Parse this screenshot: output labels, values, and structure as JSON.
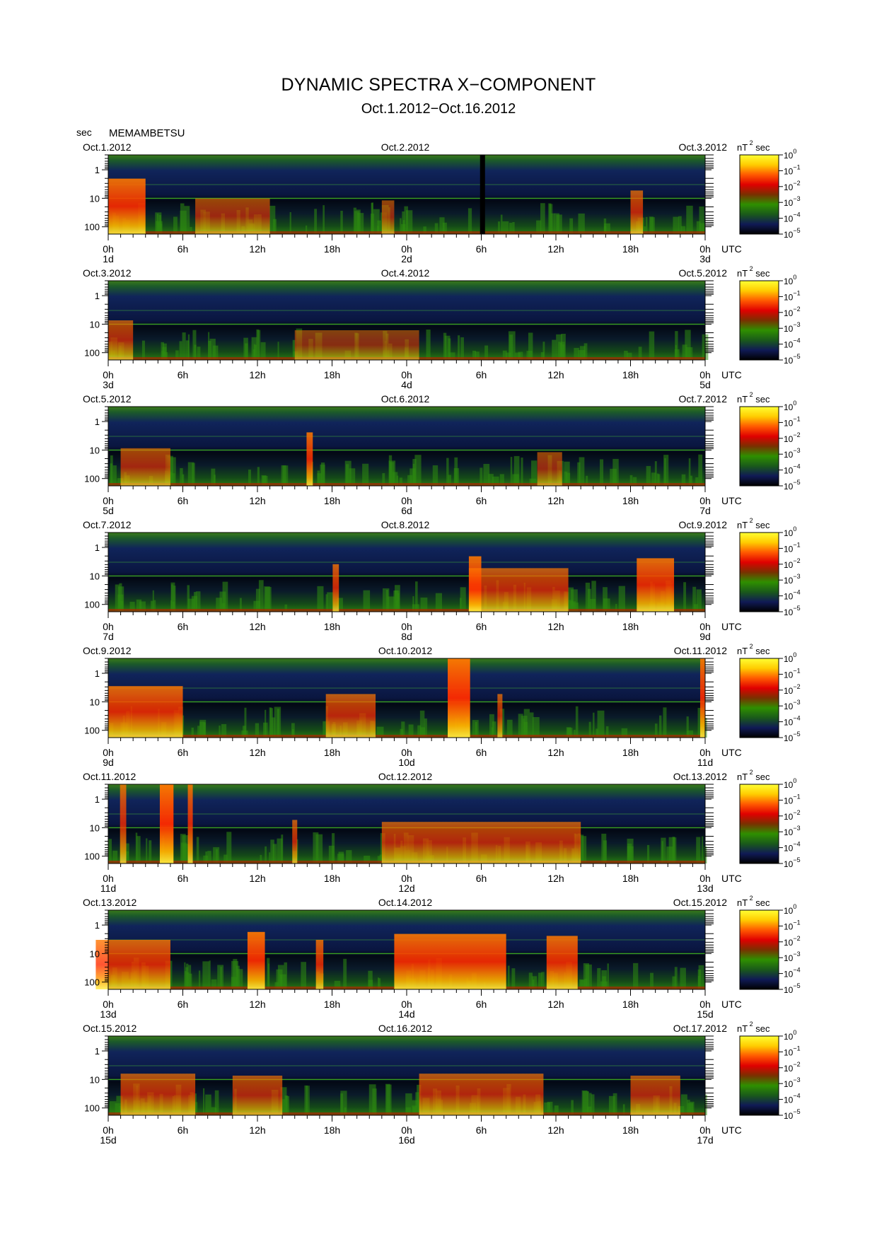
{
  "header": {
    "title": "DYNAMIC SPECTRA X−COMPONENT",
    "subtitle": "Oct.1.2012−Oct.16.2012",
    "y_unit": "sec",
    "station": "MEMAMBETSU"
  },
  "colorbar": {
    "unit_base": "nT",
    "unit_exp": "2",
    "unit_tail": "sec",
    "tick_labels": [
      {
        "base": "10",
        "exp": "0"
      },
      {
        "base": "10",
        "exp": "−1"
      },
      {
        "base": "10",
        "exp": "−2"
      },
      {
        "base": "10",
        "exp": "−3"
      },
      {
        "base": "10",
        "exp": "−4"
      },
      {
        "base": "10",
        "exp": "−5"
      }
    ],
    "colors": [
      "#ffff33",
      "#ffcc00",
      "#ff5a00",
      "#e00000",
      "#7a3000",
      "#2f8f00",
      "#1a5a1a",
      "#101a55",
      "#000000"
    ]
  },
  "axis": {
    "x_ticks": [
      "0h",
      "6h",
      "12h",
      "18h",
      "0h",
      "6h",
      "12h",
      "18h",
      "0h"
    ],
    "utc_label": "UTC",
    "y_ticks": [
      "1",
      "10",
      "100"
    ]
  },
  "chart_data": {
    "type": "heatmap",
    "title": "DYNAMIC SPECTRA X−COMPONENT",
    "xlabel": "UTC",
    "ylabel": "sec",
    "y_scale": "log",
    "ylim_sec": [
      0.3,
      180
    ],
    "color_scale": "log",
    "color_range_nT2sec": [
      1e-05,
      1
    ],
    "panels": [
      {
        "start_label": "Oct.1.2012",
        "mid_label": "Oct.2.2012",
        "end_label": "Oct.3.2012",
        "day_labels": [
          "1d",
          "2d",
          "3d"
        ],
        "bursts": [
          {
            "h": 1.5,
            "w": 3.0,
            "i": 0.9
          },
          {
            "h": 10.0,
            "w": 6.0,
            "i": 0.4
          },
          {
            "h": 22.5,
            "w": 1.0,
            "i": 0.35
          },
          {
            "h": 42.5,
            "w": 1.0,
            "i": 0.6
          }
        ],
        "gap_h": [
          29.9,
          30.3
        ]
      },
      {
        "start_label": "Oct.3.2012",
        "mid_label": "Oct.4.2012",
        "end_label": "Oct.5.2012",
        "day_labels": [
          "3d",
          "4d",
          "5d"
        ],
        "bursts": [
          {
            "h": 1.0,
            "w": 2.0,
            "i": 0.5
          },
          {
            "h": 20.0,
            "w": 10.0,
            "i": 0.25
          }
        ]
      },
      {
        "start_label": "Oct.5.2012",
        "mid_label": "Oct.6.2012",
        "end_label": "Oct.7.2012",
        "day_labels": [
          "5d",
          "6d",
          "7d"
        ],
        "bursts": [
          {
            "h": 3.0,
            "w": 4.0,
            "i": 0.45
          },
          {
            "h": 16.2,
            "w": 0.5,
            "i": 0.85
          },
          {
            "h": 35.5,
            "w": 2.0,
            "i": 0.35
          }
        ]
      },
      {
        "start_label": "Oct.7.2012",
        "mid_label": "Oct.8.2012",
        "end_label": "Oct.9.2012",
        "day_labels": [
          "7d",
          "8d",
          "9d"
        ],
        "bursts": [
          {
            "h": 18.3,
            "w": 0.5,
            "i": 0.7
          },
          {
            "h": 29.5,
            "w": 1.0,
            "i": 0.9
          },
          {
            "h": 33.0,
            "w": 8.0,
            "i": 0.6
          },
          {
            "h": 44.0,
            "w": 3.0,
            "i": 0.85
          }
        ]
      },
      {
        "start_label": "Oct.9.2012",
        "mid_label": "Oct.10.2012",
        "end_label": "Oct.11.2012",
        "day_labels": [
          "9d",
          "10d",
          "11d"
        ],
        "bursts": [
          {
            "h": 3.0,
            "w": 6.0,
            "i": 0.8
          },
          {
            "h": 19.5,
            "w": 4.0,
            "i": 0.6
          },
          {
            "h": 28.2,
            "w": 1.8,
            "i": 1.0,
            "tall": true
          },
          {
            "h": 31.5,
            "w": 0.4,
            "i": 0.6
          },
          {
            "h": 47.8,
            "w": 0.4,
            "i": 0.9,
            "tall": true
          }
        ]
      },
      {
        "start_label": "Oct.11.2012",
        "mid_label": "Oct.12.2012",
        "end_label": "Oct.13.2012",
        "day_labels": [
          "11d",
          "12d",
          "13d"
        ],
        "bursts": [
          {
            "h": 1.2,
            "w": 0.5,
            "i": 0.7,
            "tall": true
          },
          {
            "h": 4.7,
            "w": 1.1,
            "i": 1.0,
            "tall": true
          },
          {
            "h": 6.6,
            "w": 0.4,
            "i": 0.8,
            "tall": true
          },
          {
            "h": 15.0,
            "w": 0.4,
            "i": 0.6
          },
          {
            "h": 30.0,
            "w": 16.0,
            "i": 0.55
          }
        ]
      },
      {
        "start_label": "Oct.13.2012",
        "mid_label": "Oct.14.2012",
        "end_label": "Oct.15.2012",
        "day_labels": [
          "13d",
          "14d",
          "15d"
        ],
        "bursts": [
          {
            "h": 2.0,
            "w": 6.0,
            "i": 0.75
          },
          {
            "h": 11.9,
            "w": 1.4,
            "i": 0.95
          },
          {
            "h": 17.0,
            "w": 0.6,
            "i": 0.75
          },
          {
            "h": 27.5,
            "w": 9.0,
            "i": 0.9
          },
          {
            "h": 36.5,
            "w": 2.5,
            "i": 0.85
          }
        ]
      },
      {
        "start_label": "Oct.15.2012",
        "mid_label": "Oct.16.2012",
        "end_label": "Oct.17.2012",
        "day_labels": [
          "15d",
          "16d",
          "17d"
        ],
        "bursts": [
          {
            "h": 4.0,
            "w": 6.0,
            "i": 0.55
          },
          {
            "h": 12.0,
            "w": 4.0,
            "i": 0.5
          },
          {
            "h": 30.0,
            "w": 10.0,
            "i": 0.55
          },
          {
            "h": 44.0,
            "w": 4.0,
            "i": 0.5
          }
        ]
      }
    ]
  }
}
